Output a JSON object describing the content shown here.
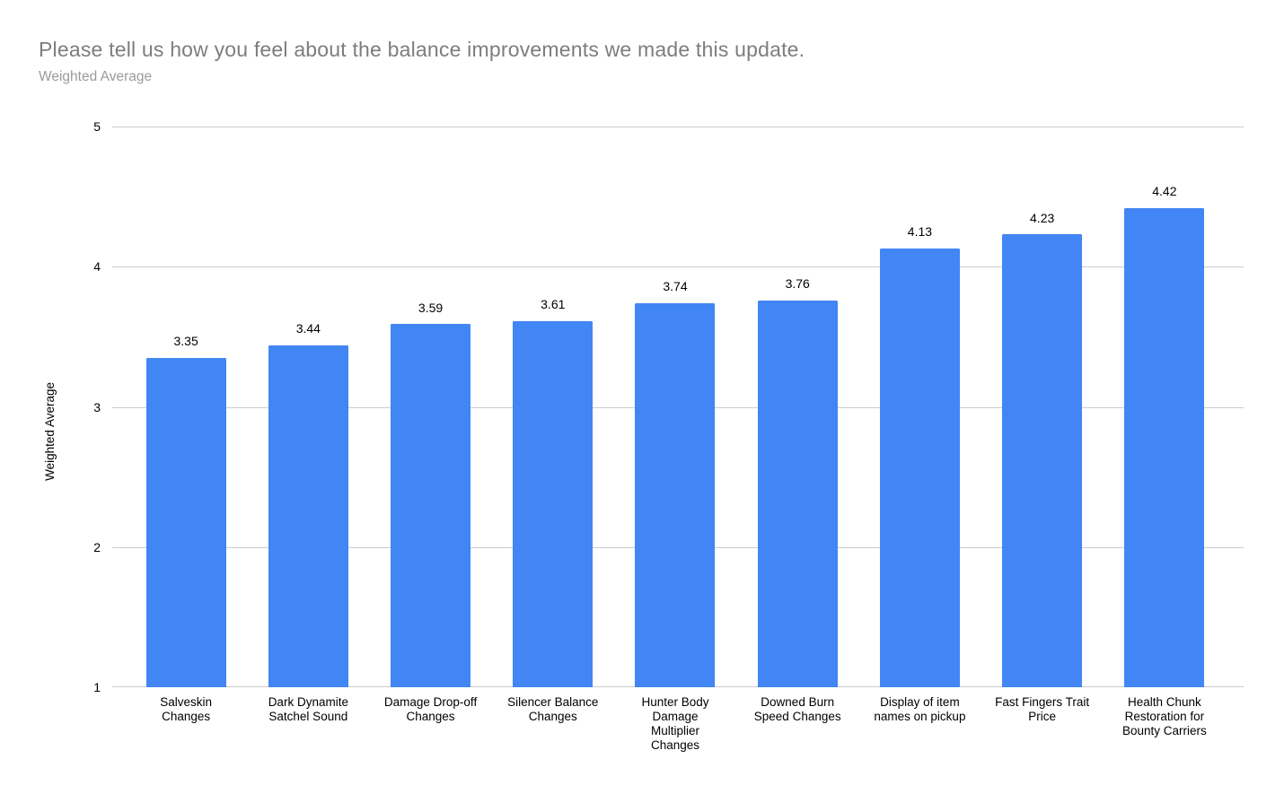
{
  "chart_data": {
    "type": "bar",
    "title": "Please tell us how you feel about the balance improvements we made this update.",
    "subtitle": "Weighted Average",
    "categories": [
      "Salveskin\nChanges",
      "Dark Dynamite\nSatchel Sound",
      "Damage Drop-off\nChanges",
      "Silencer Balance\nChanges",
      "Hunter Body\nDamage\nMultiplier\nChanges",
      "Downed Burn\nSpeed Changes",
      "Display of item\nnames on pickup",
      "Fast Fingers Trait\nPrice",
      "Health Chunk\nRestoration for\nBounty Carriers"
    ],
    "values": [
      3.35,
      3.44,
      3.59,
      3.61,
      3.74,
      3.76,
      4.13,
      4.23,
      4.42
    ],
    "value_labels": [
      "3.35",
      "3.44",
      "3.59",
      "3.61",
      "3.74",
      "3.76",
      "4.13",
      "4.23",
      "4.42"
    ],
    "xlabel": "",
    "ylabel": "Weighted Average",
    "ylim": [
      1,
      5
    ],
    "yticks": [
      1,
      2,
      3,
      4,
      5
    ],
    "grid": true,
    "legend": "none"
  },
  "colors": {
    "bar": "#4285f4",
    "gridline": "#cccccc",
    "title_text": "#7d7d7d",
    "subtitle_text": "#9b9b9b",
    "axis_text": "#000000",
    "background": "#ffffff"
  }
}
